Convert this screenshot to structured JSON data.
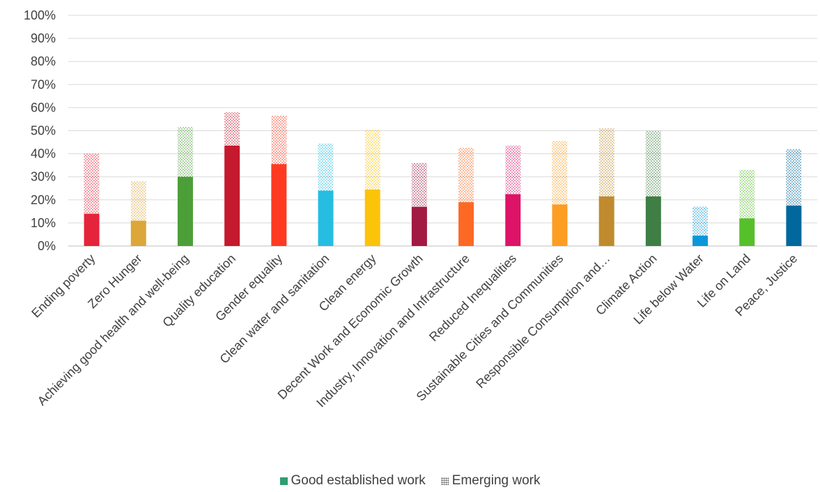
{
  "chart_data": {
    "type": "bar",
    "stacked": true,
    "categories": [
      "Ending poverty",
      "Zero Hunger",
      "Achieving good health and well-being",
      "Quality education",
      "Gender equality",
      "Clean water and sanitation",
      "Clean energy",
      "Decent Work and Economic Growth",
      "Industry, Innovation and Infrastructure",
      "Reduced Inequalities",
      "Sustainable Cities and Communities",
      "Responsible Consumption and…",
      "Climate Action",
      "Life below Water",
      "Life on Land",
      "Peace, Justice"
    ],
    "colors": [
      "#e5243b",
      "#dda63a",
      "#4c9f38",
      "#c5192d",
      "#ff3a21",
      "#26bde2",
      "#fcc30b",
      "#a21942",
      "#fd6925",
      "#dd1367",
      "#fd9d24",
      "#bf8b2e",
      "#3f7e44",
      "#0a97d9",
      "#56c02b",
      "#00689d"
    ],
    "series": [
      {
        "name": "Good established work",
        "pattern": "solid",
        "values": [
          14,
          11,
          30,
          43.5,
          35.5,
          24,
          24.5,
          17,
          19,
          22.5,
          18,
          21.5,
          21.5,
          4.5,
          12,
          17.5
        ]
      },
      {
        "name": "Emerging work",
        "pattern": "dotted",
        "values": [
          26,
          17,
          21.5,
          14.5,
          21,
          20.5,
          26,
          19,
          23.5,
          21,
          27.5,
          29.5,
          28.5,
          12.5,
          21,
          24.5
        ]
      }
    ],
    "ylim": [
      0,
      100
    ],
    "yticks": [
      "0%",
      "10%",
      "20%",
      "30%",
      "40%",
      "50%",
      "60%",
      "70%",
      "80%",
      "90%",
      "100%"
    ],
    "grid": true,
    "legend_position": "bottom",
    "title": "",
    "xlabel": "",
    "ylabel": ""
  }
}
